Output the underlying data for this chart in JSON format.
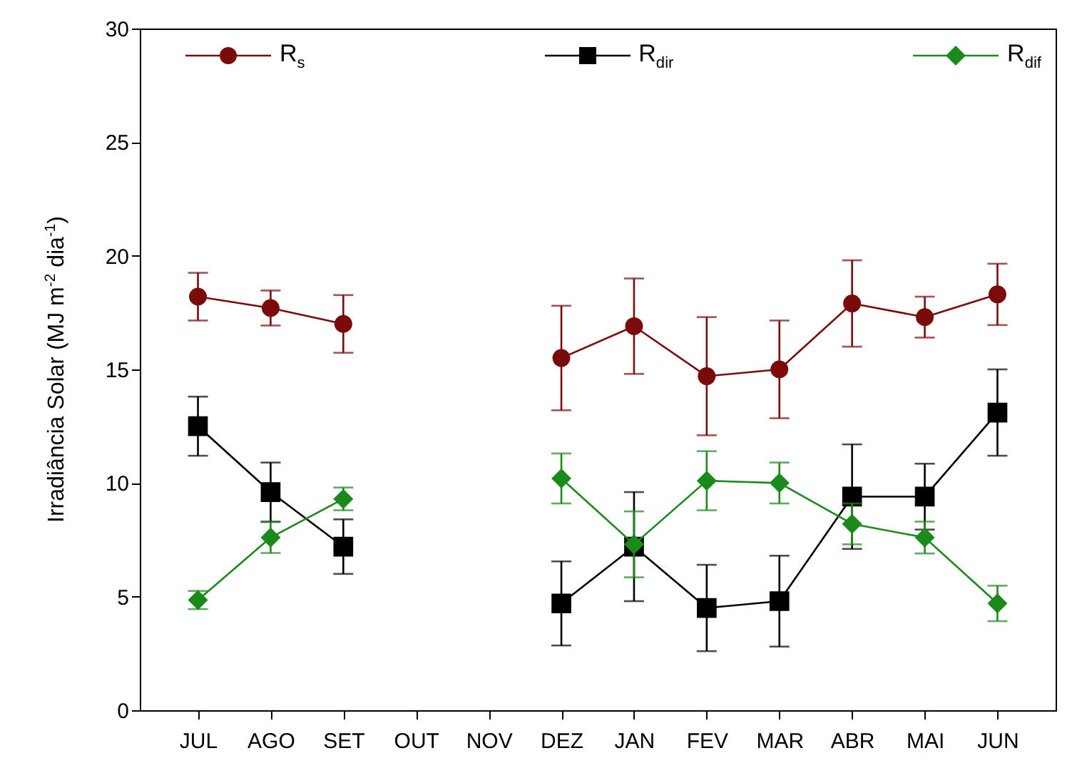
{
  "chart_data": {
    "type": "line",
    "ylabel": "Irradiância Solar  (MJ m$^{-2}$ dia$^{-1}$)",
    "categories": [
      "JUL",
      "AGO",
      "SET",
      "OUT",
      "NOV",
      "DEZ",
      "JAN",
      "FEV",
      "MAR",
      "ABR",
      "MAI",
      "JUN"
    ],
    "ylim": [
      0,
      30
    ],
    "yticks": [
      0,
      5,
      10,
      15,
      20,
      25,
      30
    ],
    "grid": false,
    "legend": "top",
    "series": [
      {
        "name": "R$_{s}$",
        "color": "#7b0a0a",
        "marker": "circle",
        "values": [
          18.2,
          17.7,
          17.0,
          null,
          null,
          15.5,
          16.9,
          14.7,
          15.0,
          17.9,
          17.3,
          18.3
        ],
        "errors": [
          1.05,
          0.77,
          1.27,
          null,
          null,
          2.3,
          2.1,
          2.6,
          2.15,
          1.9,
          0.9,
          1.35
        ]
      },
      {
        "name": "R$_{dir}$",
        "color": "#000000",
        "marker": "square",
        "values": [
          12.5,
          9.6,
          7.2,
          null,
          null,
          4.7,
          7.2,
          4.5,
          4.8,
          9.4,
          9.4,
          13.1
        ],
        "errors": [
          1.3,
          1.3,
          1.2,
          null,
          null,
          1.85,
          2.4,
          1.9,
          2.0,
          2.3,
          1.45,
          1.9
        ]
      },
      {
        "name": "R$_{dif}$",
        "color": "#1a8a1a",
        "marker": "diamond",
        "values": [
          4.85,
          7.6,
          9.3,
          null,
          null,
          10.2,
          7.3,
          10.1,
          10.0,
          8.2,
          7.6,
          4.7
        ],
        "errors": [
          0.4,
          0.68,
          0.5,
          null,
          null,
          1.1,
          1.45,
          1.3,
          0.9,
          0.9,
          0.7,
          0.78
        ]
      }
    ]
  }
}
